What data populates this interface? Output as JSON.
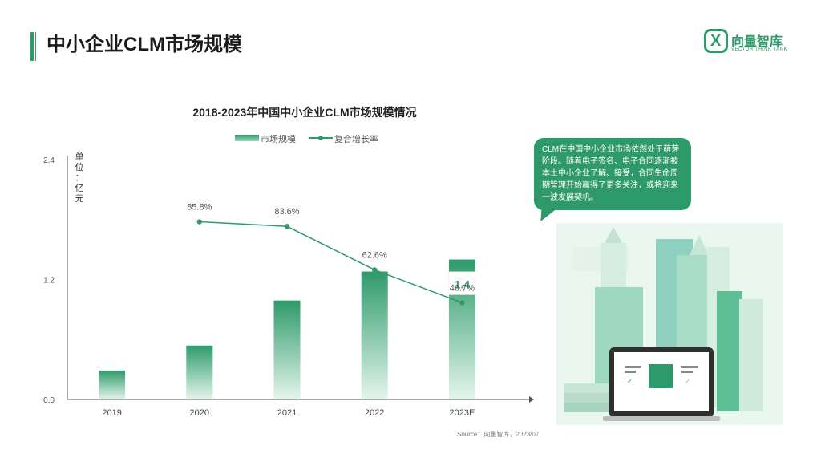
{
  "page_title": "中小企业CLM市场规模",
  "logo": {
    "mark": "X",
    "name": "向量智库",
    "subtitle": "VECTOR THINK TANK"
  },
  "legend": {
    "bar": "市场规模",
    "line": "复合增长率"
  },
  "unit_label": "单位：亿元",
  "callout": "CLM在中国中小企业市场依然处于萌芽阶段。随着电子签名、电子合同逐渐被本土中小企业了解、接受，合同生命周期管理开始赢得了更多关注，或将迎来一波发展契机。",
  "source": "Source：向量智库，2023/07",
  "colors": {
    "accent": "#2e9a6a",
    "accent_light": "#cfeedd"
  },
  "chart_data": {
    "type": "bar",
    "title": "2018-2023年中国中小企业CLM市场规模情况",
    "categories": [
      "2019",
      "2020",
      "2021",
      "2022",
      "2023E"
    ],
    "ylim": [
      0,
      2.4
    ],
    "yticks": [
      "0.0",
      "1.2",
      "2.4"
    ],
    "ylabel": "单位：亿元",
    "series": [
      {
        "name": "市场规模",
        "type": "bar",
        "values": [
          0.29,
          0.54,
          0.99,
          1.28,
          1.4
        ],
        "data_labels": [
          "",
          "",
          "",
          "",
          "1.4"
        ]
      },
      {
        "name": "复合增长率",
        "type": "line",
        "values": [
          null,
          85.8,
          83.6,
          62.6,
          46.7
        ],
        "labels": [
          "",
          "85.8%",
          "83.6%",
          "62.6%",
          "46.7%"
        ],
        "ylim": [
          0,
          160
        ]
      }
    ],
    "legend_position": "top"
  }
}
